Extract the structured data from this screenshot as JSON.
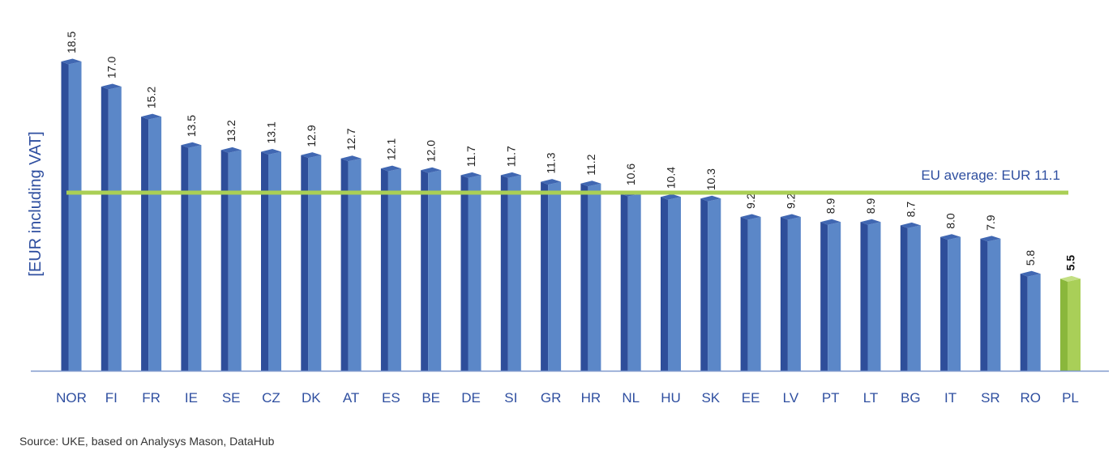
{
  "chart_data": {
    "type": "bar",
    "ylabel": "[EUR including VAT]",
    "categories": [
      "NOR",
      "FI",
      "FR",
      "IE",
      "SE",
      "CZ",
      "DK",
      "AT",
      "ES",
      "BE",
      "DE",
      "SI",
      "GR",
      "HR",
      "NL",
      "HU",
      "SK",
      "EE",
      "LV",
      "PT",
      "LT",
      "BG",
      "IT",
      "SR",
      "RO",
      "PL"
    ],
    "values": [
      18.5,
      17.0,
      15.2,
      13.5,
      13.2,
      13.1,
      12.9,
      12.7,
      12.1,
      12.0,
      11.7,
      11.7,
      11.3,
      11.2,
      10.6,
      10.4,
      10.3,
      9.2,
      9.2,
      8.9,
      8.9,
      8.7,
      8.0,
      7.9,
      5.8,
      5.5
    ],
    "value_labels": [
      "18.5",
      "17.0",
      "15.2",
      "13.5",
      "13.2",
      "13.1",
      "12.9",
      "12.7",
      "12.1",
      "12.0",
      "11.7",
      "11.7",
      "11.3",
      "11.2",
      "10.6",
      "10.4",
      "10.3",
      "9.2",
      "9.2",
      "8.9",
      "8.9",
      "8.7",
      "8.0",
      "7.9",
      "5.8",
      "5.5"
    ],
    "highlight_category": "PL",
    "reference_line": {
      "label": "EU average: EUR 11.1",
      "value": 11.1
    },
    "ylim": [
      0,
      19
    ],
    "grid": false,
    "colors": {
      "bar_front": "#5b87c8",
      "bar_side": "#2e4e9a",
      "bar_top": "#4067b2",
      "highlight_front": "#a9cf58",
      "highlight_side": "#8ab73c",
      "highlight_top": "#c3df84",
      "reference_line": "#aacf55",
      "axis": "#7e98cc",
      "text_blue": "#2f4fa0"
    }
  },
  "source": "Source: UKE, based on Analysys Mason, DataHub"
}
